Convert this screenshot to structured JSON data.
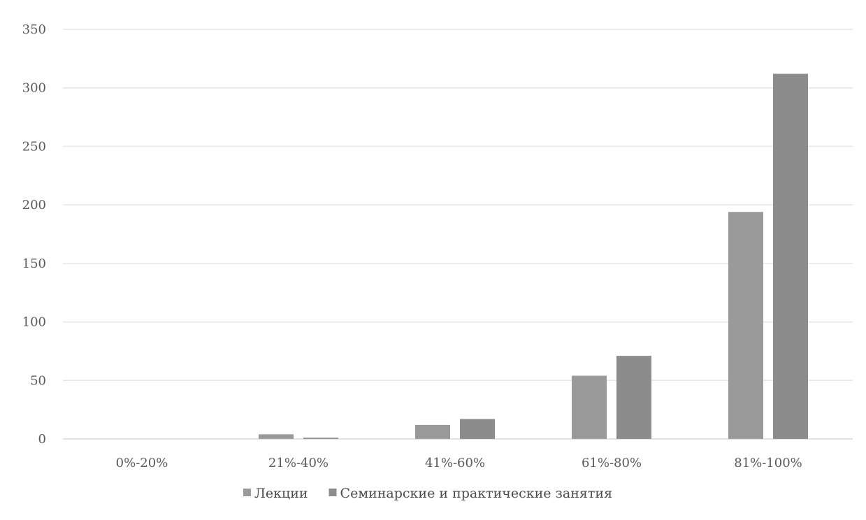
{
  "chart_data": {
    "type": "bar",
    "title": "",
    "xlabel": "",
    "ylabel": "",
    "categories": [
      "0%-20%",
      "21%-40%",
      "41%-60%",
      "61%-80%",
      "81%-100%"
    ],
    "series": [
      {
        "name": "Лекции",
        "values": [
          0,
          4,
          12,
          54,
          194
        ],
        "color": "#9a9a9a"
      },
      {
        "name": "Семинарские и практические занятия",
        "values": [
          0,
          1,
          17,
          71,
          312
        ],
        "color": "#8c8c8c"
      }
    ],
    "ylim": [
      0,
      350
    ],
    "yticks": [
      0,
      50,
      100,
      150,
      200,
      250,
      300,
      350
    ],
    "grid": true,
    "legend_position": "bottom"
  }
}
